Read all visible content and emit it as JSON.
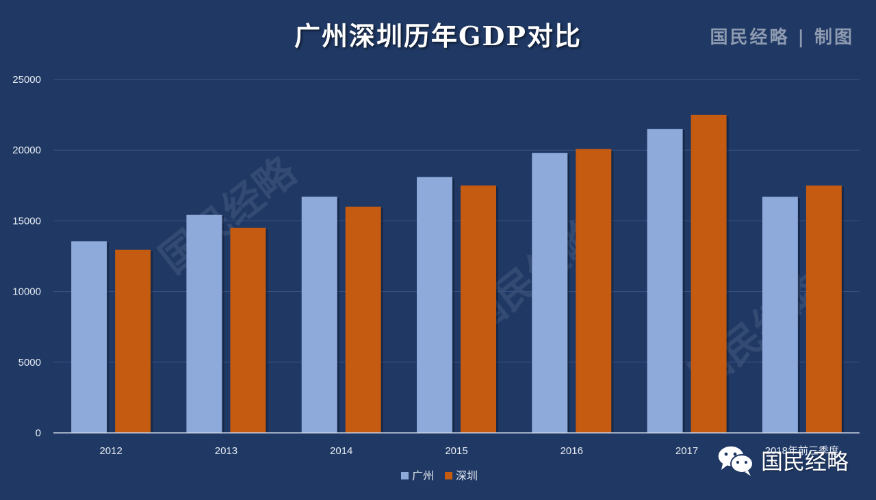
{
  "header": {
    "title": "广州深圳历年GDP对比",
    "brand": "国民经略 | 制图"
  },
  "watermark": {
    "text": "国民经略"
  },
  "footer": {
    "account_name": "国民经略"
  },
  "colors": {
    "background": "#1f3864",
    "guangzhou": "#8eaadb",
    "shenzhen": "#c55a11",
    "grid": "#3b5384",
    "axis": "#c9d3e3"
  },
  "chart_data": {
    "type": "bar",
    "title": "广州深圳历年GDP对比",
    "xlabel": "",
    "ylabel": "",
    "ylim": [
      0,
      25000
    ],
    "yticks": [
      0,
      5000,
      10000,
      15000,
      20000,
      25000
    ],
    "grid": true,
    "legend_position": "bottom",
    "categories": [
      "2012",
      "2013",
      "2014",
      "2015",
      "2016",
      "2017",
      "2018年前三季度"
    ],
    "series": [
      {
        "name": "广州",
        "color": "#8eaadb",
        "values": [
          13551,
          15420,
          16707,
          18100,
          19805,
          21503,
          16700
        ]
      },
      {
        "name": "深圳",
        "color": "#c55a11",
        "values": [
          12950,
          14500,
          16002,
          17503,
          20079,
          22490,
          17500
        ]
      }
    ]
  }
}
